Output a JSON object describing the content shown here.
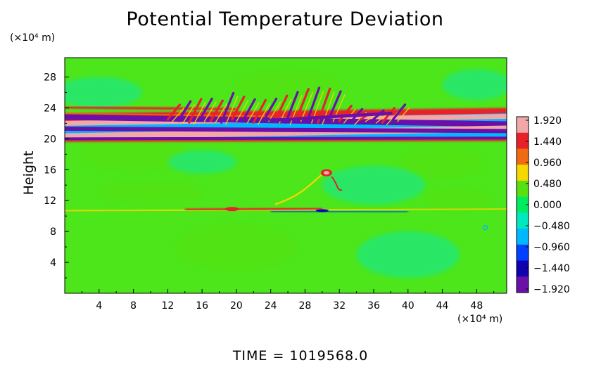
{
  "chart_data": {
    "type": "heatmap",
    "title": "Potential Temperature Deviation",
    "ylabel": "Height",
    "x_unit": "(×10⁴ m)",
    "y_unit": "(×10⁴ m)",
    "xlim": [
      0,
      51.5
    ],
    "ylim": [
      0,
      30.5
    ],
    "x_ticks": [
      "4",
      "8",
      "12",
      "16",
      "20",
      "24",
      "28",
      "32",
      "36",
      "40",
      "44",
      "48"
    ],
    "y_ticks": [
      "4",
      "8",
      "12",
      "16",
      "20",
      "24",
      "28"
    ],
    "background_value": 0.0,
    "features": [
      {
        "name": "upper-purple-band",
        "x": [
          0,
          51.5
        ],
        "y_start": 22.8,
        "y_end": 21.9,
        "value": -1.92
      },
      {
        "name": "upper-pink-band",
        "x": [
          0,
          51.5
        ],
        "y_start": 22.0,
        "y_end": 22.9,
        "value": 1.92
      },
      {
        "name": "middle-purple-band",
        "x": [
          0,
          51.5
        ],
        "y_start": 21.3,
        "y_end": 21.0,
        "value": -1.92
      },
      {
        "name": "lower-pink-band",
        "x": [
          0,
          51.5
        ],
        "y_start": 20.3,
        "y_end": 21.3,
        "value": 1.92
      },
      {
        "name": "bottom-purple-band",
        "x": [
          0,
          51.5
        ],
        "y_start": 20.0,
        "y_end": 20.1,
        "value": -1.92
      },
      {
        "name": "upper-red-line",
        "x": [
          0,
          20
        ],
        "y": 24.1,
        "value": 1.6
      },
      {
        "name": "plume",
        "x": 30.5,
        "y": 15.6,
        "value": 1.9
      },
      {
        "name": "warm-layer",
        "x": [
          14,
          30
        ],
        "y": 10.8,
        "value": 1.5
      },
      {
        "name": "cold-layer",
        "x": [
          24,
          40
        ],
        "y": 10.6,
        "value": -1.5
      }
    ],
    "colorbar": {
      "labels": [
        "1.920",
        "1.440",
        "0.960",
        "0.480",
        "0.000",
        "−0.480",
        "−0.960",
        "−1.440",
        "−1.920"
      ],
      "colors": [
        "#f2a8a8",
        "#e8202a",
        "#f06a10",
        "#f5d800",
        "#58e010",
        "#00ec60",
        "#00e8c0",
        "#00b8ff",
        "#0040ff",
        "#1000b0",
        "#6a10a8"
      ]
    },
    "time_label": "TIME  =  1019568.0"
  }
}
